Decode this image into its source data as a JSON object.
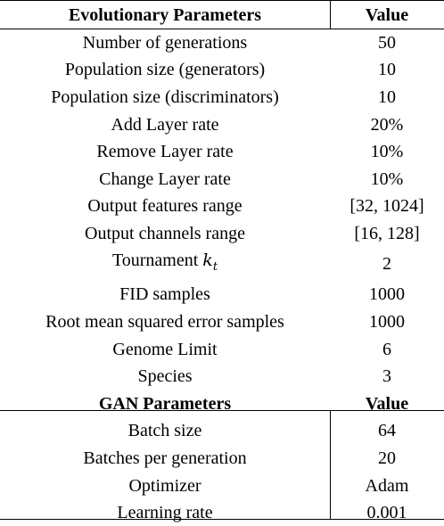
{
  "evolutionary": {
    "header": {
      "param": "Evolutionary Parameters",
      "value": "Value"
    },
    "rows": [
      {
        "param": "Number of generations",
        "value": "50"
      },
      {
        "param": "Population size (generators)",
        "value": "10"
      },
      {
        "param": "Population size (discriminators)",
        "value": "10"
      },
      {
        "param": "Add Layer rate",
        "value": "20%"
      },
      {
        "param": "Remove Layer rate",
        "value": "10%"
      },
      {
        "param": "Change Layer rate",
        "value": "10%"
      },
      {
        "param": "Output features range",
        "value": "[32, 1024]"
      },
      {
        "param": "Output channels range",
        "value": "[16, 128]"
      },
      {
        "param": "Tournament ",
        "param_var": "k",
        "param_sub": "t",
        "value": "2"
      },
      {
        "param": "FID samples",
        "value": "1000"
      },
      {
        "param": "Root mean squared error samples",
        "value": "1000"
      },
      {
        "param": "Genome Limit",
        "value": "6"
      },
      {
        "param": "Species",
        "value": "3"
      }
    ]
  },
  "gan": {
    "header": {
      "param": "GAN Parameters",
      "value": "Value"
    },
    "rows": [
      {
        "param": "Batch size",
        "value": "64"
      },
      {
        "param": "Batches per generation",
        "value": "20"
      },
      {
        "param": "Optimizer",
        "value": "Adam"
      },
      {
        "param": "Learning rate",
        "value": "0.001"
      }
    ]
  }
}
